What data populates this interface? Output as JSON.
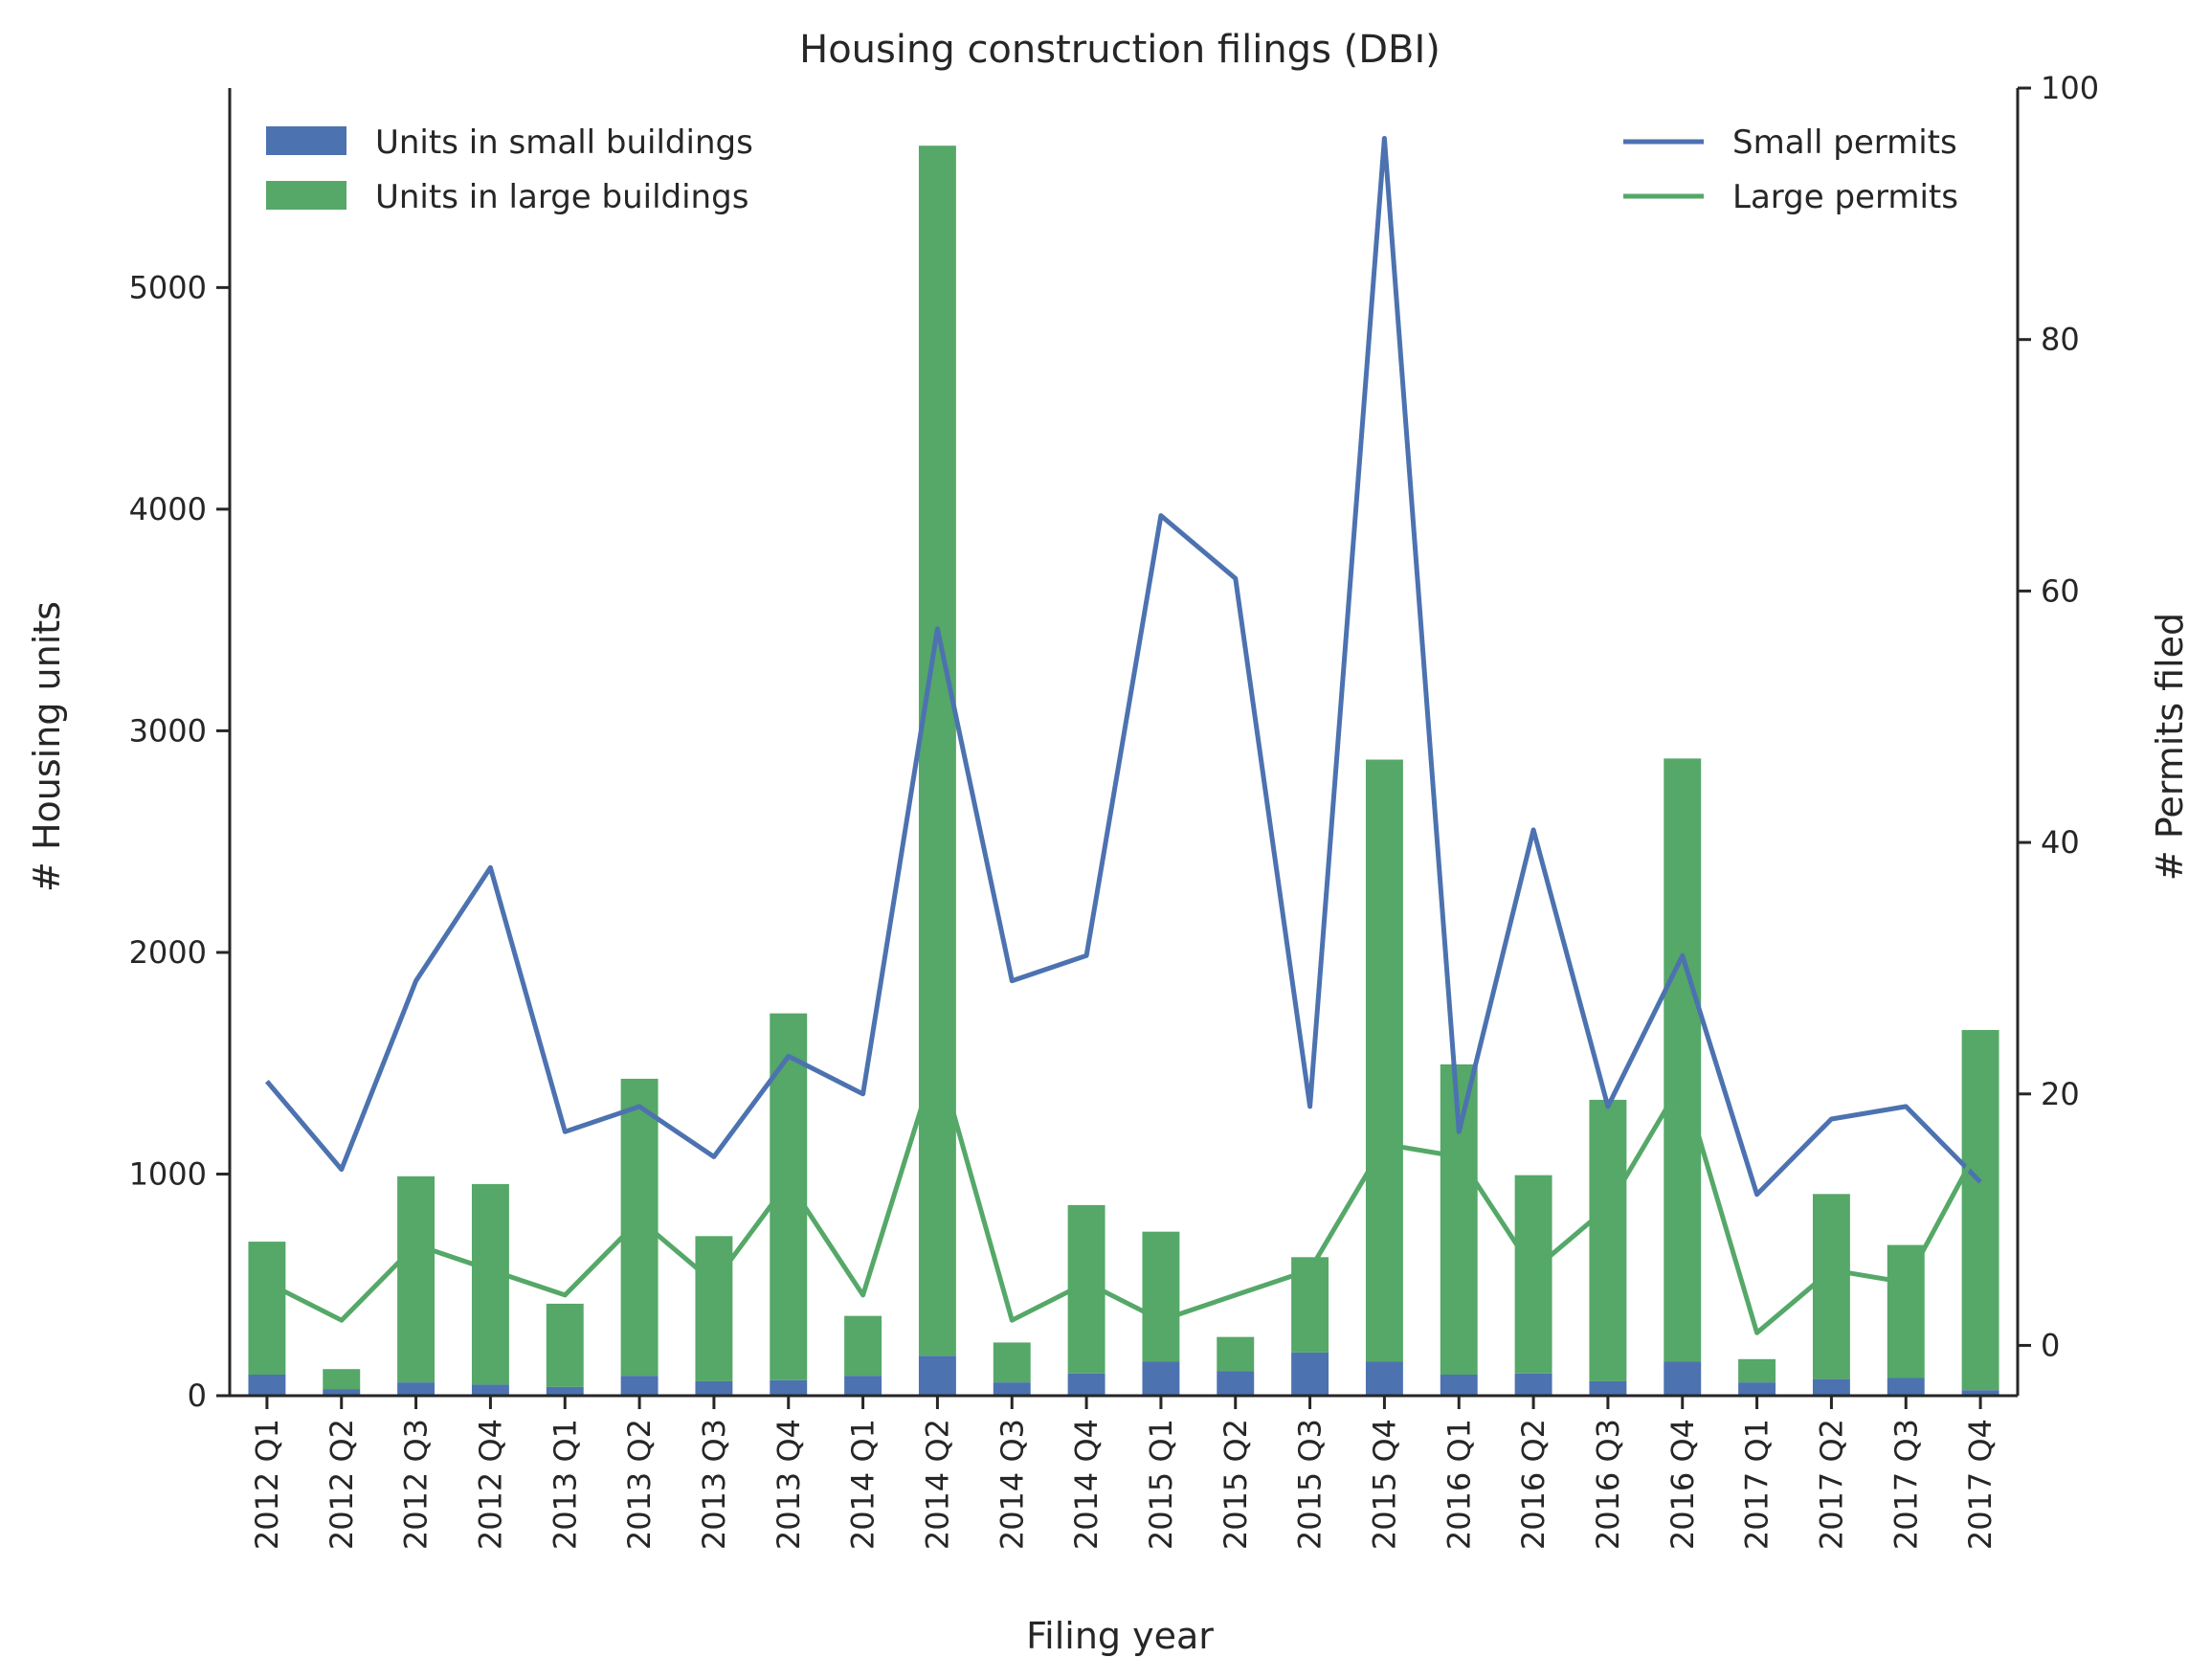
{
  "chart_data": {
    "type": "bar+line",
    "title": "Housing construction filings (DBI)",
    "xlabel": "Filing year",
    "ylabel_left": "# Housing units",
    "ylabel_right": "# Permits filed",
    "ylim_left": [
      0,
      5900
    ],
    "ylim_right": [
      -4,
      100
    ],
    "yticks_left": [
      0,
      1000,
      2000,
      3000,
      4000,
      5000
    ],
    "yticks_right": [
      0,
      20,
      40,
      60,
      80,
      100
    ],
    "grid": false,
    "categories": [
      "2012 Q1",
      "2012 Q2",
      "2012 Q3",
      "2012 Q4",
      "2013 Q1",
      "2013 Q2",
      "2013 Q3",
      "2013 Q4",
      "2014 Q1",
      "2014 Q2",
      "2014 Q3",
      "2014 Q4",
      "2015 Q1",
      "2015 Q2",
      "2015 Q3",
      "2015 Q4",
      "2016 Q1",
      "2016 Q2",
      "2016 Q3",
      "2016 Q4",
      "2017 Q1",
      "2017 Q2",
      "2017 Q3",
      "2017 Q4"
    ],
    "bar_series": [
      {
        "name": "Units in small buildings",
        "color": "#4c72b0",
        "values": [
          95,
          30,
          60,
          50,
          40,
          90,
          65,
          70,
          90,
          180,
          60,
          100,
          155,
          110,
          195,
          155,
          95,
          100,
          65,
          155,
          60,
          75,
          80,
          25
        ]
      },
      {
        "name": "Units in large buildings",
        "color": "#55a868",
        "values": [
          600,
          90,
          930,
          905,
          375,
          1340,
          655,
          1655,
          270,
          5460,
          180,
          760,
          585,
          155,
          430,
          2715,
          1400,
          895,
          1270,
          2720,
          105,
          835,
          600,
          1625
        ]
      }
    ],
    "line_series": [
      {
        "name": "Small permits",
        "color": "#4c72b0",
        "axis": "right",
        "values": [
          21,
          14,
          29,
          38,
          17,
          19,
          15,
          23,
          20,
          57,
          29,
          31,
          66,
          61,
          19,
          96,
          17,
          41,
          19,
          31,
          12,
          18,
          19,
          13
        ]
      },
      {
        "name": "Large permits",
        "color": "#55a868",
        "axis": "right",
        "values": [
          5,
          2,
          8,
          6,
          4,
          10,
          5,
          13,
          4,
          23,
          2,
          5,
          2,
          4,
          6,
          16,
          15,
          6,
          11,
          21,
          1,
          6,
          5,
          16
        ]
      }
    ],
    "legend_left": "top-left",
    "legend_right": "top-right"
  }
}
